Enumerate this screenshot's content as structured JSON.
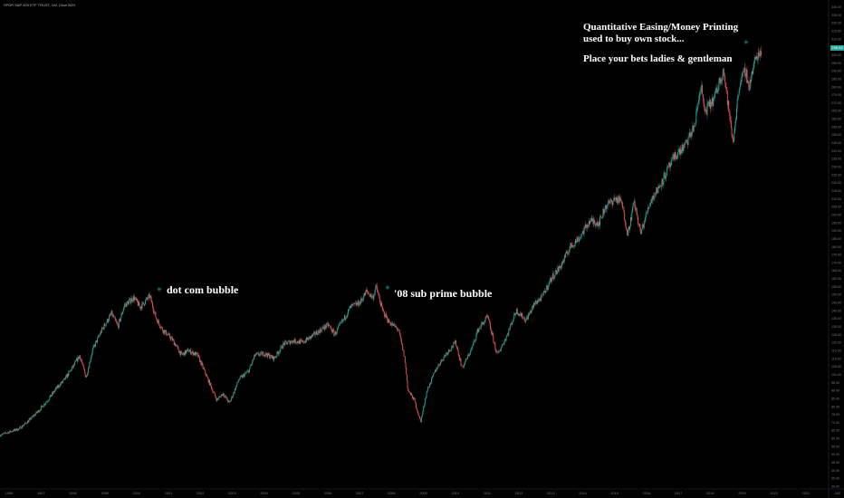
{
  "header": {
    "symbol_line": "SPDR S&P 500 ETF TRUST, 1W, Cboe BZX"
  },
  "annotations": {
    "dot_com": "dot com bubble",
    "subprime": "'08 sub prime bubble",
    "qe_line1": "Quantitative Easing/Money Printing",
    "qe_line2": "used to buy own stock...",
    "bets": "Place your bets ladies & gentleman"
  },
  "last_price_label": "298.54",
  "colors": {
    "up": "#26a69a",
    "down": "#ef5350",
    "background": "#000000",
    "axis_text": "#787b86"
  },
  "chart_data": {
    "type": "line",
    "style": "candlestick",
    "title": "SPDR S&P 500 ETF TRUST, 1W, Cboe BZX",
    "x_tick_labels": [
      "1996",
      "1997",
      "1998",
      "1999",
      "2000",
      "2001",
      "2002",
      "2003",
      "2004",
      "2005",
      "2006",
      "2007",
      "2008",
      "2009",
      "2010",
      "2011",
      "2012",
      "2013",
      "2014",
      "2015",
      "2016",
      "2017",
      "2018",
      "2019",
      "2020",
      "2021",
      "202"
    ],
    "y_tick_labels": [
      "30.00",
      "35.00",
      "40.00",
      "45.00",
      "50.00",
      "55.00",
      "60.00",
      "65.00",
      "70.00",
      "75.00",
      "80.00",
      "85.00",
      "90.00",
      "95.00",
      "100.00",
      "105.00",
      "110.00",
      "115.00",
      "120.00",
      "125.00",
      "130.00",
      "135.00",
      "140.00",
      "145.00",
      "150.00",
      "155.00",
      "160.00",
      "165.00",
      "170.00",
      "175.00",
      "180.00",
      "185.00",
      "190.00",
      "195.00",
      "200.00",
      "205.00",
      "210.00",
      "215.00",
      "220.00",
      "225.00",
      "230.00",
      "235.00",
      "240.00",
      "245.00",
      "250.00",
      "255.00",
      "260.00",
      "265.00",
      "270.00",
      "275.00",
      "280.00",
      "285.00",
      "290.00",
      "295.00",
      "300.00",
      "305.00",
      "310.00",
      "315.00",
      "320.00",
      "325.00",
      "330.00"
    ],
    "ylim": [
      30,
      332
    ],
    "xlim": [
      1996.0,
      2022.0
    ],
    "series": [
      {
        "points": [
          [
            1996.0,
            62
          ],
          [
            1996.3,
            64
          ],
          [
            1996.6,
            66
          ],
          [
            1996.9,
            71
          ],
          [
            1997.2,
            77
          ],
          [
            1997.5,
            84
          ],
          [
            1997.8,
            92
          ],
          [
            1998.0,
            96
          ],
          [
            1998.3,
            105
          ],
          [
            1998.5,
            112
          ],
          [
            1998.7,
            98
          ],
          [
            1998.9,
            115
          ],
          [
            1999.2,
            128
          ],
          [
            1999.5,
            138
          ],
          [
            1999.7,
            130
          ],
          [
            1999.9,
            143
          ],
          [
            2000.2,
            148
          ],
          [
            2000.4,
            142
          ],
          [
            2000.7,
            149
          ],
          [
            2000.9,
            135
          ],
          [
            2001.1,
            128
          ],
          [
            2001.4,
            122
          ],
          [
            2001.7,
            112
          ],
          [
            2001.9,
            115
          ],
          [
            2002.2,
            112
          ],
          [
            2002.5,
            98
          ],
          [
            2002.8,
            84
          ],
          [
            2003.0,
            88
          ],
          [
            2003.2,
            82
          ],
          [
            2003.5,
            97
          ],
          [
            2003.8,
            102
          ],
          [
            2004.0,
            112
          ],
          [
            2004.3,
            113
          ],
          [
            2004.6,
            110
          ],
          [
            2004.9,
            119
          ],
          [
            2005.2,
            121
          ],
          [
            2005.5,
            120
          ],
          [
            2005.8,
            124
          ],
          [
            2006.0,
            127
          ],
          [
            2006.3,
            131
          ],
          [
            2006.5,
            125
          ],
          [
            2006.8,
            135
          ],
          [
            2007.0,
            142
          ],
          [
            2007.3,
            145
          ],
          [
            2007.5,
            152
          ],
          [
            2007.7,
            148
          ],
          [
            2007.8,
            155
          ],
          [
            2008.0,
            140
          ],
          [
            2008.2,
            133
          ],
          [
            2008.5,
            128
          ],
          [
            2008.7,
            110
          ],
          [
            2008.8,
            90
          ],
          [
            2009.0,
            84
          ],
          [
            2009.2,
            70
          ],
          [
            2009.4,
            90
          ],
          [
            2009.7,
            104
          ],
          [
            2010.0,
            113
          ],
          [
            2010.3,
            120
          ],
          [
            2010.5,
            104
          ],
          [
            2010.8,
            116
          ],
          [
            2011.0,
            128
          ],
          [
            2011.3,
            136
          ],
          [
            2011.6,
            112
          ],
          [
            2011.9,
            124
          ],
          [
            2012.2,
            140
          ],
          [
            2012.5,
            134
          ],
          [
            2012.8,
            145
          ],
          [
            2013.0,
            148
          ],
          [
            2013.3,
            160
          ],
          [
            2013.6,
            168
          ],
          [
            2013.9,
            180
          ],
          [
            2014.2,
            186
          ],
          [
            2014.5,
            196
          ],
          [
            2014.8,
            195
          ],
          [
            2015.0,
            205
          ],
          [
            2015.3,
            210
          ],
          [
            2015.5,
            208
          ],
          [
            2015.7,
            188
          ],
          [
            2015.9,
            208
          ],
          [
            2016.1,
            188
          ],
          [
            2016.4,
            208
          ],
          [
            2016.7,
            218
          ],
          [
            2016.9,
            226
          ],
          [
            2017.2,
            237
          ],
          [
            2017.5,
            243
          ],
          [
            2017.8,
            256
          ],
          [
            2018.0,
            282
          ],
          [
            2018.1,
            264
          ],
          [
            2018.4,
            272
          ],
          [
            2018.7,
            291
          ],
          [
            2018.9,
            260
          ],
          [
            2019.0,
            245
          ],
          [
            2019.2,
            282
          ],
          [
            2019.4,
            290
          ],
          [
            2019.5,
            280
          ],
          [
            2019.7,
            297
          ],
          [
            2019.9,
            304
          ]
        ]
      }
    ]
  }
}
